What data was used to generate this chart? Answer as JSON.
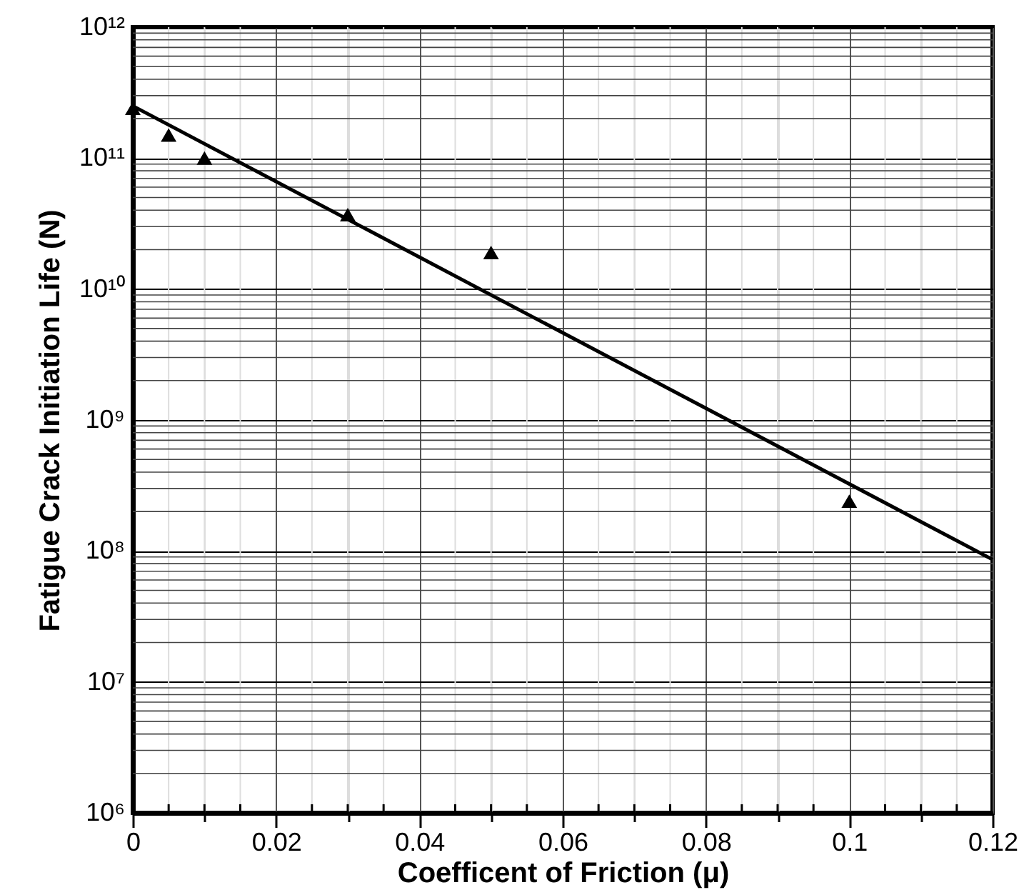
{
  "chart_data": {
    "type": "scatter",
    "xlabel": "Coefficent of Friction (μ)",
    "ylabel": "Fatigue Crack Initiation Life (N)",
    "log": "y",
    "grid": true,
    "marker": "triangle",
    "xlim": [
      0,
      0.12
    ],
    "xticks": [
      0,
      {
        "value": 0.005,
        "label": null
      },
      {
        "value": 0.01,
        "label": null
      },
      {
        "value": 0.015,
        "label": null
      },
      0.02,
      {
        "value": 0.025,
        "label": null
      },
      {
        "value": 0.03,
        "label": null
      },
      {
        "value": 0.035,
        "label": null
      },
      0.04,
      {
        "value": 0.045,
        "label": null
      },
      {
        "value": 0.05,
        "label": null
      },
      {
        "value": 0.055,
        "label": null
      },
      0.06,
      {
        "value": 0.065,
        "label": null
      },
      {
        "value": 0.07,
        "label": null
      },
      {
        "value": 0.075,
        "label": null
      },
      0.08,
      {
        "value": 0.085,
        "label": null
      },
      {
        "value": 0.09,
        "label": null
      },
      {
        "value": 0.095,
        "label": null
      },
      0.1,
      {
        "value": 0.105,
        "label": null
      },
      {
        "value": 0.11,
        "label": null
      },
      {
        "value": 0.115,
        "label": null
      },
      0.12
    ],
    "ylim": [
      1000000,
      1000000000000
    ],
    "yticks": [
      {
        "value": 1000000,
        "label": "10⁶"
      },
      {
        "value": 10000000,
        "label": "10⁷"
      },
      {
        "value": 100000000,
        "label": "10⁸"
      },
      {
        "value": 1000000000,
        "label": "10⁹"
      },
      {
        "value": 10000000000,
        "label": "10¹⁰"
      },
      {
        "value": 100000000000,
        "label": "10¹¹"
      },
      {
        "value": 1000000000000,
        "label": "10¹²"
      }
    ],
    "series": [
      {
        "color": "#000000",
        "x": [
          0,
          0.005,
          0.01,
          0.03,
          0.05,
          0.1
        ],
        "values": [
          240000000000,
          150000000000,
          100000000000,
          37000000000,
          19000000000,
          240000000
        ]
      },
      {
        "type": "line",
        "color": "#000000",
        "marker": "none",
        "line_style": "solid",
        "x": [
          0,
          0.12
        ],
        "values": [
          250000000000,
          86000000
        ]
      }
    ]
  }
}
